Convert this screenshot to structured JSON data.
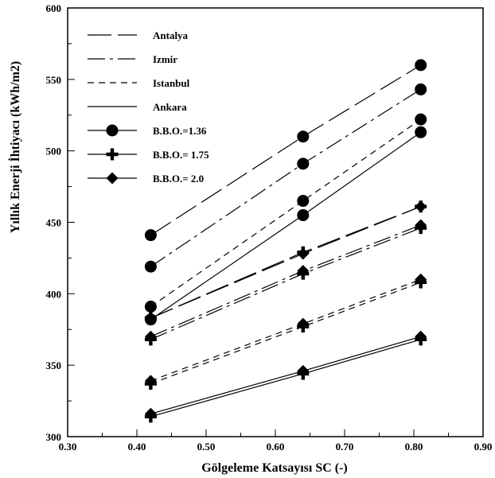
{
  "chart_data": {
    "type": "line",
    "xlabel": "Gölgeleme Katsayısı SC (-)",
    "ylabel": "Yıllık Enerji İhtiyacı (kWh/m2)",
    "xlim": [
      0.3,
      0.9
    ],
    "ylim": [
      300,
      600
    ],
    "x_ticks": [
      0.3,
      0.4,
      0.5,
      0.6,
      0.7,
      0.8,
      0.9
    ],
    "y_ticks": [
      300,
      350,
      400,
      450,
      500,
      550,
      600
    ],
    "x_tick_labels": [
      "0.30",
      "0.40",
      "0.50",
      "0.60",
      "0.70",
      "0.80",
      "0.90"
    ],
    "y_tick_labels": [
      "300",
      "350",
      "400",
      "450",
      "500",
      "550",
      "600"
    ],
    "grid": false,
    "legend_position": "top-left",
    "legend": {
      "cities": [
        {
          "name": "Antalya",
          "dash": "long"
        },
        {
          "name": "Izmir",
          "dash": "dashdot"
        },
        {
          "name": "Istanbul",
          "dash": "short"
        },
        {
          "name": "Ankara",
          "dash": "solid"
        }
      ],
      "markers": [
        {
          "name": "B.B.O.=1.36",
          "marker": "circle"
        },
        {
          "name": "B.B.O.= 1.75",
          "marker": "plus"
        },
        {
          "name": "B.B.O.= 2.0",
          "marker": "diamond"
        }
      ]
    },
    "series": [
      {
        "city": "Antalya",
        "bbo": "B.B.O.=1.36",
        "dash": "long",
        "marker": "circle",
        "x": [
          0.42,
          0.64,
          0.81
        ],
        "y": [
          441,
          510,
          560
        ]
      },
      {
        "city": "Izmir",
        "bbo": "B.B.O.=1.36",
        "dash": "dashdot",
        "marker": "circle",
        "x": [
          0.42,
          0.64,
          0.81
        ],
        "y": [
          419,
          491,
          543
        ]
      },
      {
        "city": "Istanbul",
        "bbo": "B.B.O.=1.36",
        "dash": "short",
        "marker": "circle",
        "x": [
          0.42,
          0.64,
          0.81
        ],
        "y": [
          391,
          465,
          522
        ]
      },
      {
        "city": "Ankara",
        "bbo": "B.B.O.=1.36",
        "dash": "solid",
        "marker": "circle",
        "x": [
          0.42,
          0.64,
          0.81
        ],
        "y": [
          382,
          455,
          513
        ]
      },
      {
        "city": "Antalya",
        "bbo": "B.B.O.= 1.75",
        "dash": "long",
        "marker": "plus",
        "x": [
          0.42,
          0.64,
          0.81
        ],
        "y": [
          383,
          429,
          461
        ]
      },
      {
        "city": "Izmir",
        "bbo": "B.B.O.= 1.75",
        "dash": "dashdot",
        "marker": "plus",
        "x": [
          0.42,
          0.64,
          0.81
        ],
        "y": [
          368,
          414,
          446
        ]
      },
      {
        "city": "Istanbul",
        "bbo": "B.B.O.= 1.75",
        "dash": "short",
        "marker": "plus",
        "x": [
          0.42,
          0.64,
          0.81
        ],
        "y": [
          337,
          377,
          408
        ]
      },
      {
        "city": "Ankara",
        "bbo": "B.B.O.= 1.75",
        "dash": "solid",
        "marker": "plus",
        "x": [
          0.42,
          0.64,
          0.81
        ],
        "y": [
          314,
          344,
          368
        ]
      },
      {
        "city": "Antalya",
        "bbo": "B.B.O.= 2.0",
        "dash": "long",
        "marker": "diamond",
        "x": [
          0.42,
          0.64,
          0.81
        ],
        "y": [
          383,
          428,
          461
        ]
      },
      {
        "city": "Izmir",
        "bbo": "B.B.O.= 2.0",
        "dash": "dashdot",
        "marker": "diamond",
        "x": [
          0.42,
          0.64,
          0.81
        ],
        "y": [
          370,
          416,
          448
        ]
      },
      {
        "city": "Istanbul",
        "bbo": "B.B.O.= 2.0",
        "dash": "short",
        "marker": "diamond",
        "x": [
          0.42,
          0.64,
          0.81
        ],
        "y": [
          339,
          379,
          410
        ]
      },
      {
        "city": "Ankara",
        "bbo": "B.B.O.= 2.0",
        "dash": "solid",
        "marker": "diamond",
        "x": [
          0.42,
          0.64,
          0.81
        ],
        "y": [
          316,
          346,
          370
        ]
      }
    ]
  }
}
